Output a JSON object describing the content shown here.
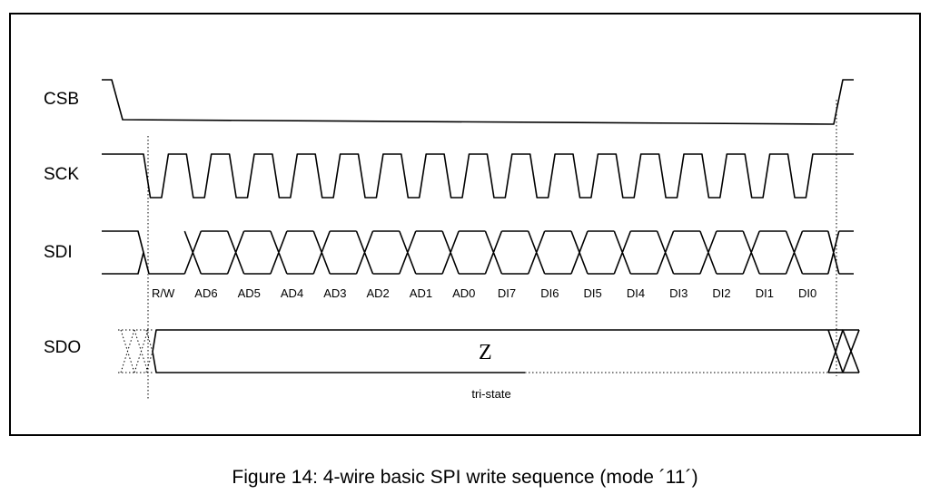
{
  "diagram": {
    "signals": [
      "CSB",
      "SCK",
      "SDI",
      "SDO"
    ],
    "bits": [
      "R/W",
      "AD6",
      "AD5",
      "AD4",
      "AD3",
      "AD2",
      "AD1",
      "AD0",
      "DI7",
      "DI6",
      "DI5",
      "DI4",
      "DI3",
      "DI2",
      "DI1",
      "DI0"
    ],
    "sdo_state": "Z",
    "sdo_note": "tri-state"
  },
  "caption": "Figure 14: 4-wire basic SPI write sequence (mode ´11´)"
}
